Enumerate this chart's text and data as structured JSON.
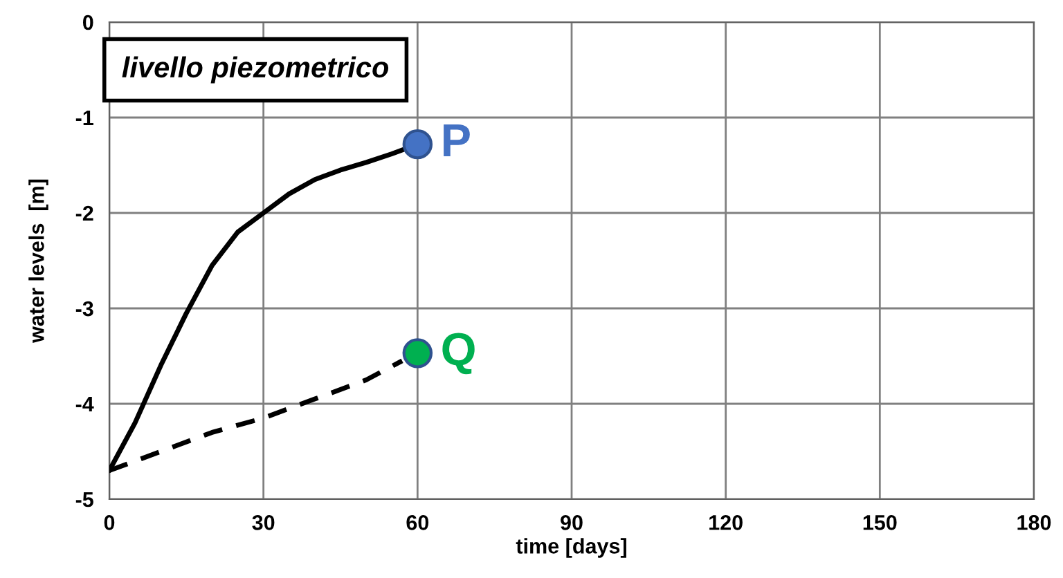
{
  "chart_data": {
    "type": "line",
    "title": "livello piezometrico",
    "xlabel": "time [days]",
    "ylabel": "water levels  [m]",
    "xlim": [
      0,
      180
    ],
    "xticks": [
      0,
      30,
      60,
      90,
      120,
      150,
      180
    ],
    "ylim": [
      -5,
      0
    ],
    "yticks": [
      -5,
      -4,
      -3,
      -2,
      -1,
      0
    ],
    "grid": true,
    "legend": false,
    "series": [
      {
        "color": "#000000",
        "line_style": "solid",
        "marker": "none",
        "x": [
          0,
          5,
          10,
          15,
          20,
          25,
          30,
          35,
          40,
          45,
          50,
          55,
          58
        ],
        "values": [
          -4.7,
          -4.2,
          -3.6,
          -3.05,
          -2.55,
          -2.2,
          -2.0,
          -1.8,
          -1.65,
          -1.55,
          -1.47,
          -1.38,
          -1.32
        ]
      },
      {
        "color": "#000000",
        "line_style": "dashed",
        "marker": "none",
        "x": [
          0,
          10,
          20,
          30,
          40,
          50,
          57
        ],
        "values": [
          -4.7,
          -4.5,
          -4.3,
          -4.15,
          -3.95,
          -3.75,
          -3.55
        ]
      },
      {
        "type": "scatter",
        "name": "P",
        "color": "#4472c4",
        "marker": "circle",
        "x": [
          60
        ],
        "values": [
          -1.28
        ]
      },
      {
        "type": "scatter",
        "name": "Q",
        "color": "#00b050",
        "marker": "circle",
        "x": [
          60
        ],
        "values": [
          -3.47
        ]
      }
    ]
  }
}
